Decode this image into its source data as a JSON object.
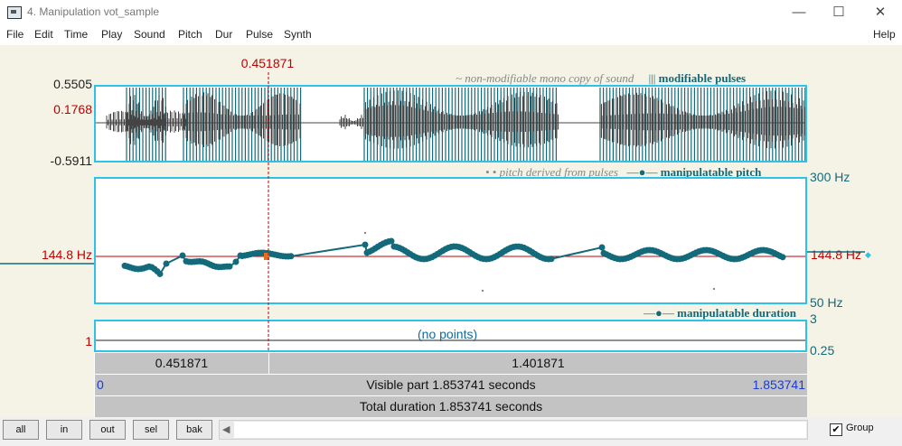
{
  "window": {
    "title": "4. Manipulation vot_sample",
    "minimize": "—",
    "maximize": "☐",
    "close": "✕"
  },
  "menu": [
    "File",
    "Edit",
    "Time",
    "Play",
    "Sound",
    "Pitch",
    "Dur",
    "Pulse",
    "Synth"
  ],
  "help": "Help",
  "cursor": {
    "time_label": "0.451871"
  },
  "waveform": {
    "y_max": "0.5505",
    "y_cursor": "0.1768",
    "y_min": "-0.5911",
    "legend_copy": "~ non-modifiable mono copy of sound",
    "legend_pulses_symbol": "|||",
    "legend_pulses": "modifiable pulses"
  },
  "pitch": {
    "legend_derived": "• • pitch derived from pulses",
    "legend_manip_symbol": "—●—",
    "legend_manip": "manipulatable pitch",
    "y_top": "300 Hz",
    "y_bottom": "50 Hz",
    "ref_left": "144.8 Hz",
    "ref_right": "144.8 Hz",
    "ref_marker": "◆"
  },
  "duration": {
    "legend_symbol": "—●—",
    "legend": "manipulatable duration",
    "y_top": "3",
    "y_bottom": "0.25",
    "left_value": "1",
    "no_points": "(no points)"
  },
  "selection_bar": {
    "left": "0.451871",
    "right": "1.401871"
  },
  "visible_bar": {
    "start": "0",
    "text": "Visible part 1.853741 seconds",
    "end": "1.853741"
  },
  "total_bar": {
    "text": "Total duration 1.853741 seconds"
  },
  "bottom_buttons": [
    "all",
    "in",
    "out",
    "sel",
    "bak"
  ],
  "group": {
    "label": "Group",
    "checked": "✔"
  },
  "colors": {
    "accent": "#2ec3e6",
    "pulse": "#136a7a",
    "cursor": "#c00000"
  }
}
